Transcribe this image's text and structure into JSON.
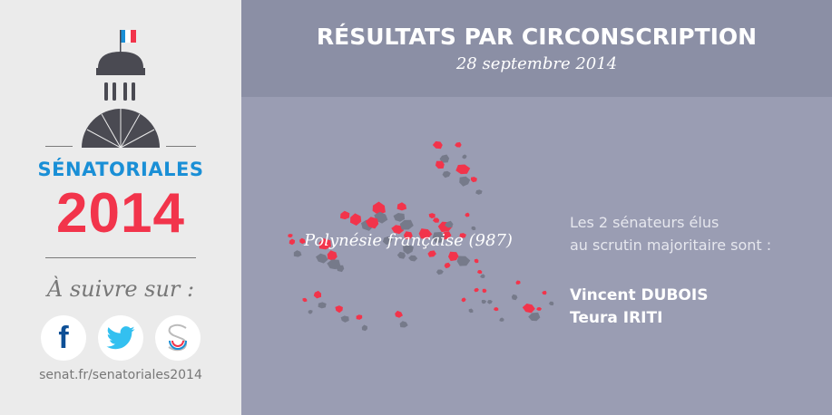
{
  "sidebar": {
    "brand_top": "SÉNATORIALES",
    "brand_year": "2014",
    "follow_label": "À suivre sur :",
    "social": [
      {
        "name": "facebook",
        "icon": "facebook-icon"
      },
      {
        "name": "twitter",
        "icon": "twitter-icon"
      },
      {
        "name": "senat",
        "icon": "senat-icon"
      }
    ],
    "url": "senat.fr/senatoriales2014"
  },
  "header": {
    "title": "RÉSULTATS PAR CIRCONSCRIPTION",
    "date": "28 septembre 2014"
  },
  "main": {
    "territory": "Polynésie française (987)",
    "intro_line1": "Les 2 sénateurs élus",
    "intro_line2": "au scrutin majoritaire sont :",
    "senators": [
      "Vincent DUBOIS",
      "Teura IRITI"
    ]
  },
  "colors": {
    "accent_red": "#f2344b",
    "accent_blue": "#1a8fd6",
    "island_gray": "#767a8a",
    "sidebar_bg": "#ebebeb",
    "header_bg": "#8b8fa5",
    "main_bg": "#9a9db3"
  }
}
